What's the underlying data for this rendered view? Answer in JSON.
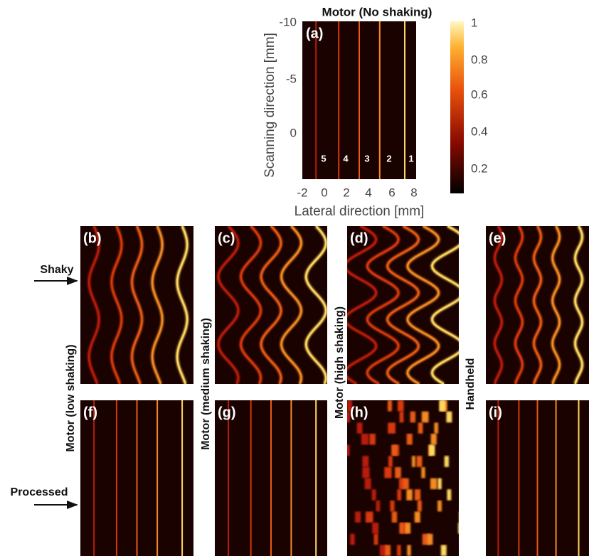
{
  "figure": {
    "panel_a": {
      "title": "Motor (No shaking)",
      "label": "(a)",
      "y_axis_label": "Scanning direction [mm]",
      "x_axis_label": "Lateral direction [mm]",
      "yticks": [
        "-10",
        "-5",
        "0"
      ],
      "xticks": [
        "-2",
        "0",
        "2",
        "4",
        "6",
        "8"
      ],
      "line_numbers": [
        "5",
        "4",
        "3",
        "2",
        "1"
      ],
      "colorbar_ticks": [
        "1",
        "0.8",
        "0.6",
        "0.4",
        "0.2"
      ]
    },
    "panels": [
      {
        "label": "(b)"
      },
      {
        "label": "(c)"
      },
      {
        "label": "(d)"
      },
      {
        "label": "(e)"
      },
      {
        "label": "(f)"
      },
      {
        "label": "(g)"
      },
      {
        "label": "(h)"
      },
      {
        "label": "(i)"
      }
    ],
    "row_labels": [
      "Shaky",
      "Processed"
    ],
    "column_labels": [
      "Motor (low shaking)",
      "Motor (medium shaking)",
      "Motor (high shaking)",
      "Handheld"
    ]
  }
}
